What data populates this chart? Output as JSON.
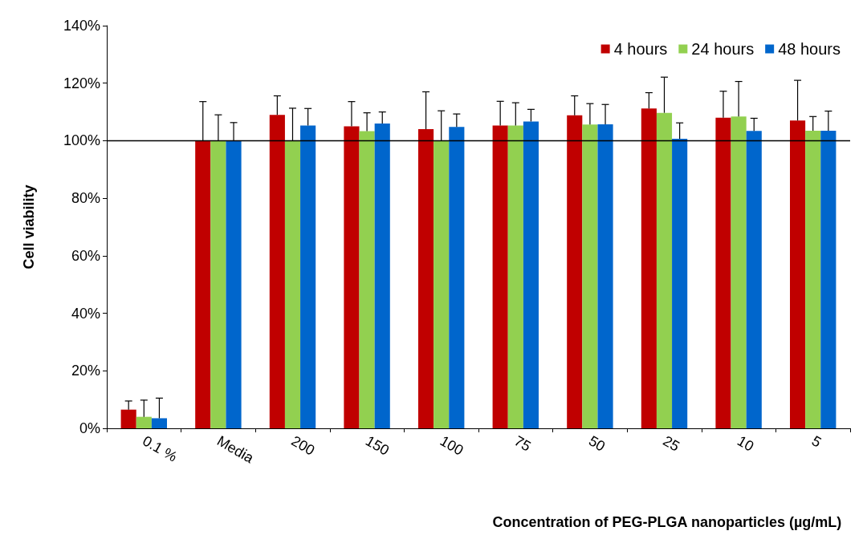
{
  "chart_data": {
    "type": "bar",
    "ylabel": "Cell viability",
    "xlabel": "Concentration of PEG-PLGA nanoparticles (µg/mL)",
    "categories": [
      "0.1 %",
      "Media",
      "200",
      "150",
      "100",
      "75",
      "50",
      "25",
      "10",
      "5"
    ],
    "series": [
      {
        "name": "4 hours",
        "color": "#c00000",
        "values": [
          6.5,
          100,
          109,
          105,
          104,
          105.3,
          108.8,
          111.2,
          108,
          107
        ],
        "errors": [
          [
            6.5,
            9.5
          ],
          [
            100,
            113.6
          ],
          [
            109,
            115.6
          ],
          [
            105,
            113.6
          ],
          [
            104,
            117
          ],
          [
            105.3,
            113.7
          ],
          [
            108.8,
            115.6
          ],
          [
            111.2,
            116.7
          ],
          [
            108,
            117.2
          ],
          [
            107,
            121
          ]
        ]
      },
      {
        "name": "24 hours",
        "color": "#92d050",
        "values": [
          4,
          100,
          100,
          103.3,
          100,
          105.3,
          105.6,
          109.7,
          108.4,
          103.5
        ],
        "errors": [
          [
            4,
            9.8
          ],
          [
            100,
            109
          ],
          [
            100,
            111.3
          ],
          [
            103.3,
            109.7
          ],
          [
            100,
            110.4
          ],
          [
            105.3,
            113.2
          ],
          [
            105.6,
            112.9
          ],
          [
            109.7,
            122.1
          ],
          [
            108.4,
            120.6
          ],
          [
            103.5,
            108.4
          ]
        ]
      },
      {
        "name": "48 hours",
        "color": "#0066cc",
        "values": [
          3.5,
          100,
          105.3,
          106,
          104.8,
          106.7,
          105.7,
          100.7,
          103.4,
          103.5
        ],
        "errors": [
          [
            3.5,
            10.5
          ],
          [
            100,
            106.3
          ],
          [
            105.3,
            111.2
          ],
          [
            106,
            110
          ],
          [
            104.8,
            109.3
          ],
          [
            106.7,
            110.9
          ],
          [
            105.7,
            112.6
          ],
          [
            100.7,
            106.2
          ],
          [
            103.4,
            107.8
          ],
          [
            103.5,
            110.3
          ]
        ]
      }
    ],
    "ylim": [
      0,
      140
    ],
    "yticks": [
      {
        "value": 0,
        "label": "0%"
      },
      {
        "value": 20,
        "label": "20%"
      },
      {
        "value": 40,
        "label": "40%"
      },
      {
        "value": 60,
        "label": "60%"
      },
      {
        "value": 80,
        "label": "80%"
      },
      {
        "value": 100,
        "label": "100%"
      },
      {
        "value": 120,
        "label": "120%"
      },
      {
        "value": 140,
        "label": "140%"
      }
    ],
    "ref_lines": [
      {
        "axis": "y",
        "value": 100,
        "color": "#000000"
      }
    ],
    "grid": false,
    "legend": "top right"
  }
}
